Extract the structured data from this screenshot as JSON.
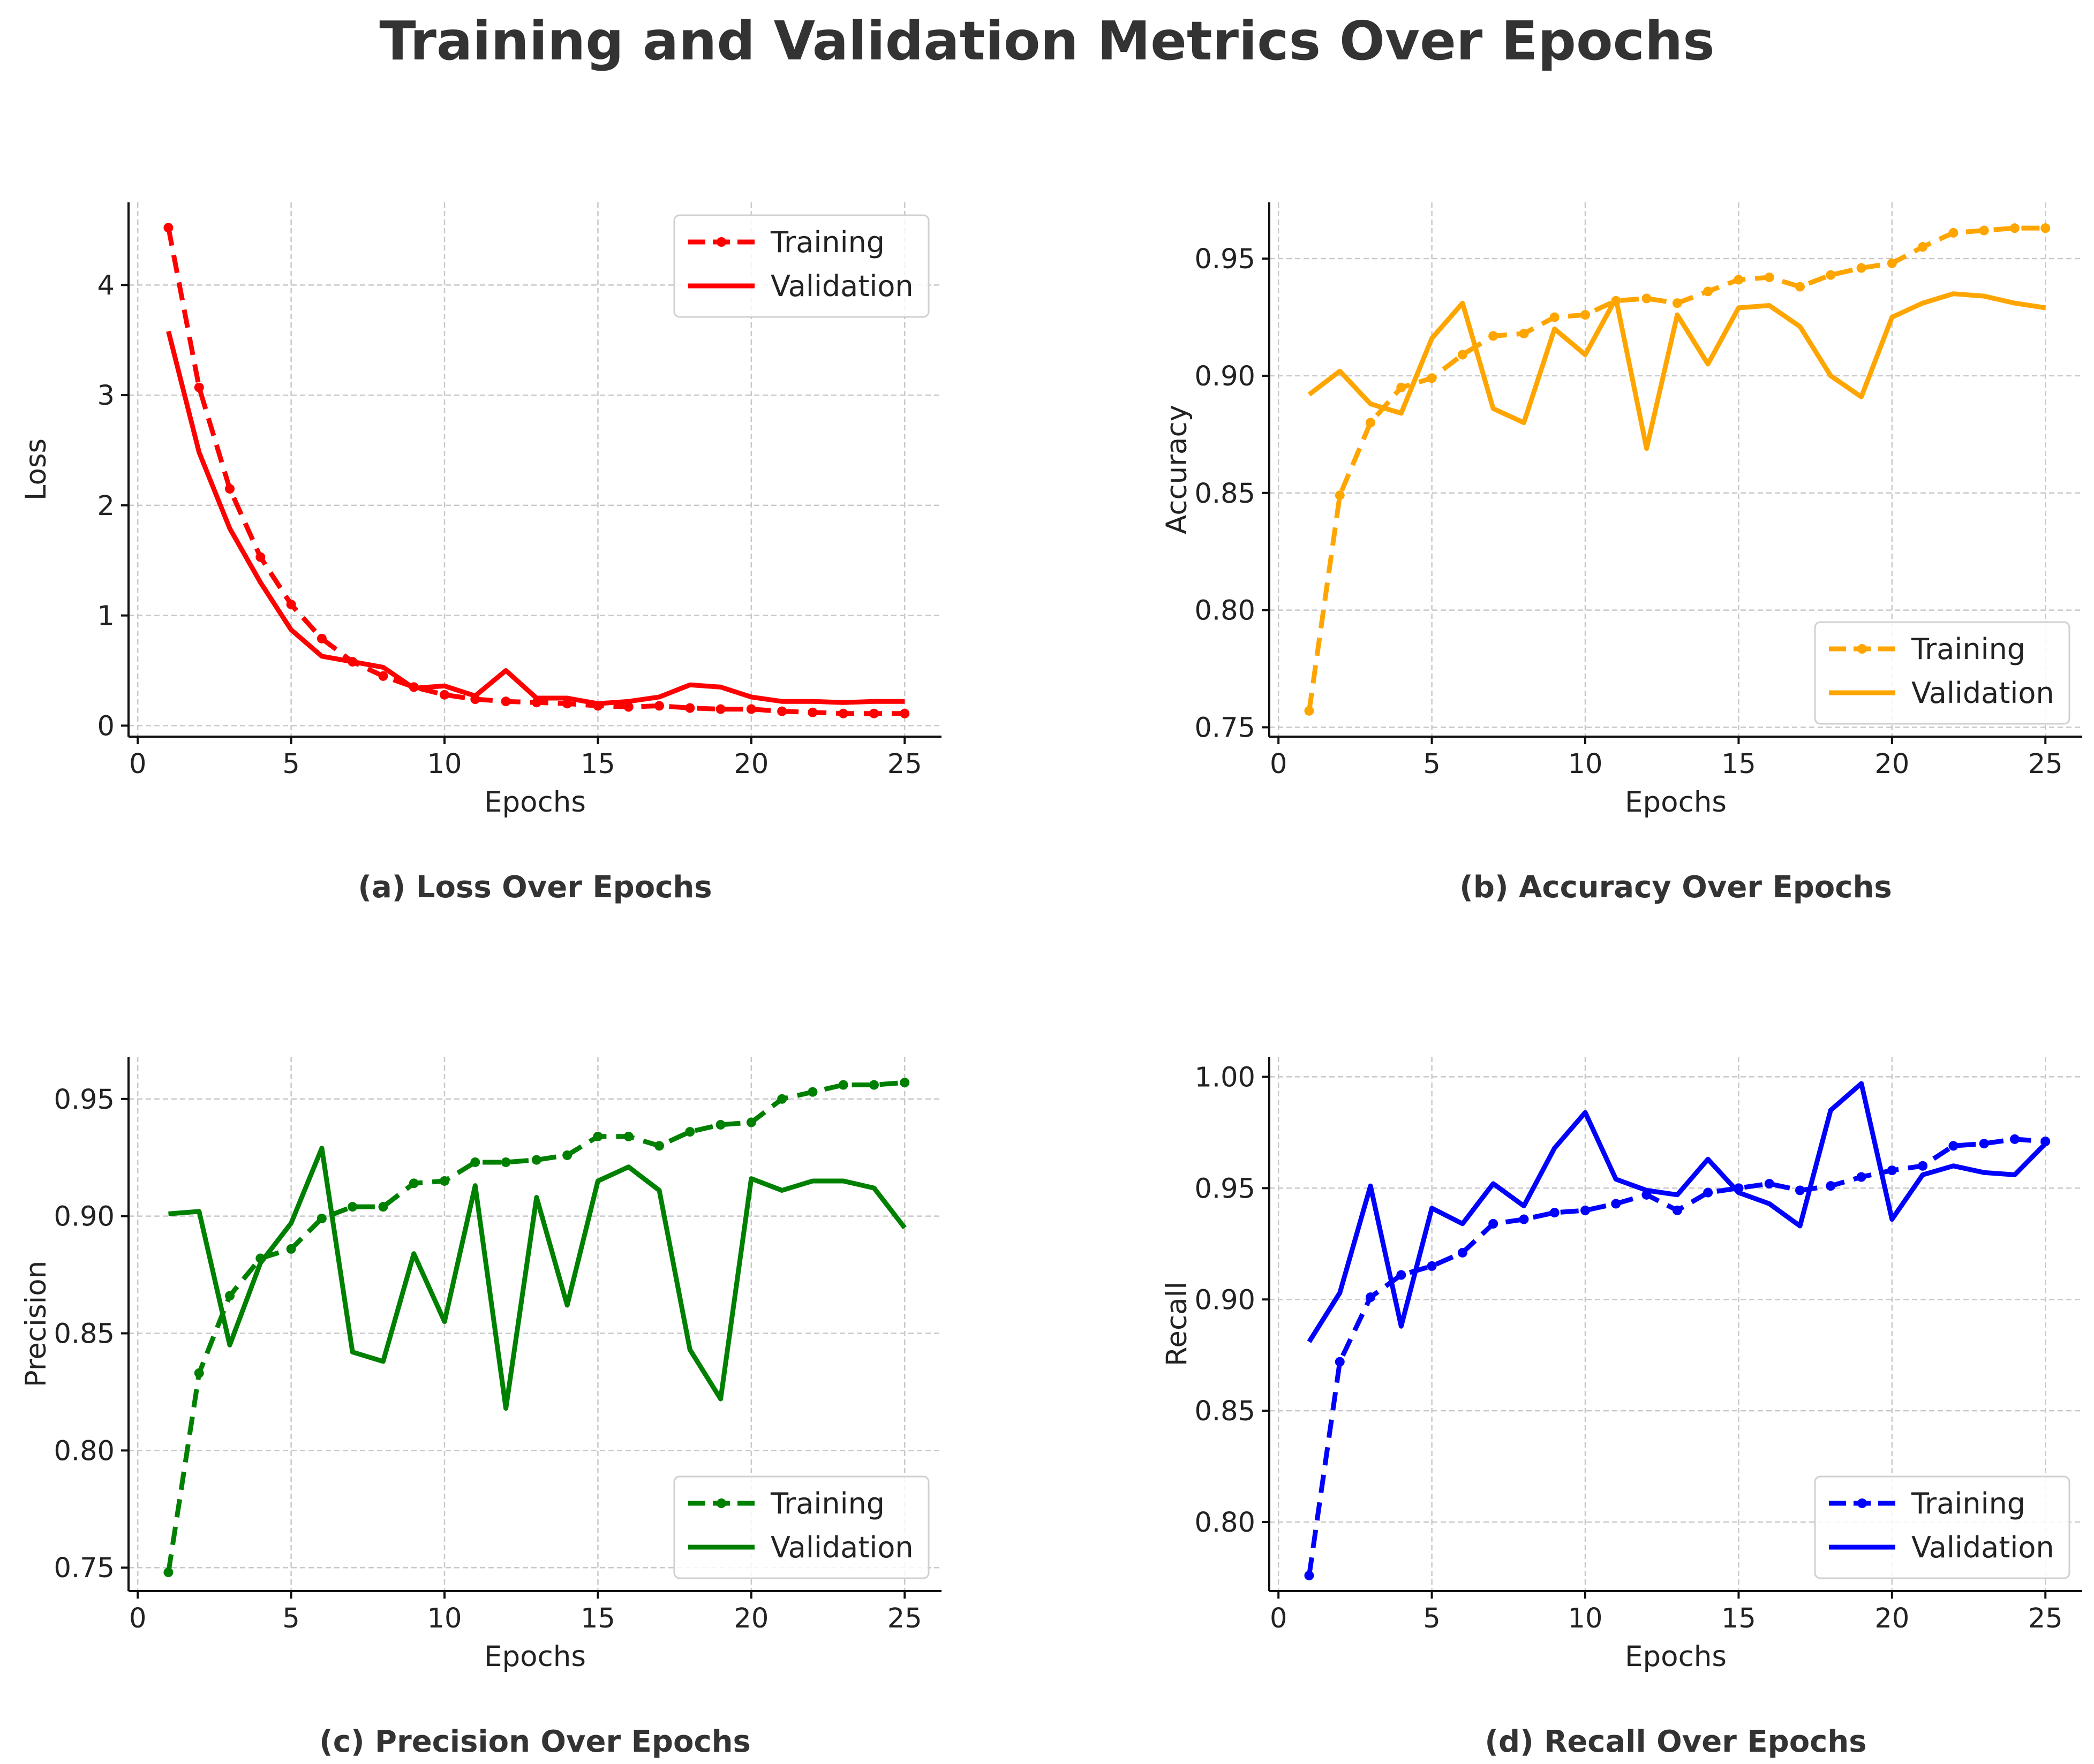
{
  "title": "Training and Validation Metrics Over Epochs",
  "chart_data": [
    {
      "type": "line",
      "id": "loss",
      "caption": "(a) Loss Over Epochs",
      "xlabel": "Epochs",
      "ylabel": "Loss",
      "color": "#ff0000",
      "xlim": [
        -0.3,
        26.2
      ],
      "ylim": [
        -0.1,
        4.75
      ],
      "xticks": [
        0,
        5,
        10,
        15,
        20,
        25
      ],
      "yticks": [
        0,
        1,
        2,
        3,
        4
      ],
      "ytick_decimals": 0,
      "legend_position": "top-right",
      "x": [
        1,
        2,
        3,
        4,
        5,
        6,
        7,
        8,
        9,
        10,
        11,
        12,
        13,
        14,
        15,
        16,
        17,
        18,
        19,
        20,
        21,
        22,
        23,
        24,
        25
      ],
      "series": [
        {
          "name": "Training",
          "style": "dashed-marker",
          "values": [
            4.52,
            3.07,
            2.15,
            1.53,
            1.1,
            0.79,
            0.58,
            0.45,
            0.35,
            0.28,
            0.24,
            0.22,
            0.21,
            0.2,
            0.18,
            0.17,
            0.18,
            0.16,
            0.15,
            0.15,
            0.13,
            0.12,
            0.11,
            0.11,
            0.11
          ]
        },
        {
          "name": "Validation",
          "style": "solid",
          "values": [
            3.58,
            2.48,
            1.79,
            1.3,
            0.87,
            0.63,
            0.58,
            0.53,
            0.34,
            0.36,
            0.27,
            0.5,
            0.25,
            0.25,
            0.2,
            0.22,
            0.26,
            0.37,
            0.35,
            0.26,
            0.22,
            0.22,
            0.21,
            0.22,
            0.22
          ]
        }
      ]
    },
    {
      "type": "line",
      "id": "accuracy",
      "caption": "(b) Accuracy Over Epochs",
      "xlabel": "Epochs",
      "ylabel": "Accuracy",
      "color": "#ffa500",
      "xlim": [
        -0.3,
        26.2
      ],
      "ylim": [
        0.746,
        0.974
      ],
      "xticks": [
        0,
        5,
        10,
        15,
        20,
        25
      ],
      "yticks": [
        0.75,
        0.8,
        0.85,
        0.9,
        0.95
      ],
      "ytick_decimals": 2,
      "legend_position": "lower-right",
      "x": [
        1,
        2,
        3,
        4,
        5,
        6,
        7,
        8,
        9,
        10,
        11,
        12,
        13,
        14,
        15,
        16,
        17,
        18,
        19,
        20,
        21,
        22,
        23,
        24,
        25
      ],
      "series": [
        {
          "name": "Training",
          "style": "dashed-marker",
          "values": [
            0.757,
            0.849,
            0.88,
            0.895,
            0.899,
            0.909,
            0.917,
            0.918,
            0.925,
            0.926,
            0.932,
            0.933,
            0.931,
            0.936,
            0.941,
            0.942,
            0.938,
            0.943,
            0.946,
            0.948,
            0.955,
            0.961,
            0.962,
            0.963,
            0.963
          ]
        },
        {
          "name": "Validation",
          "style": "solid",
          "values": [
            0.892,
            0.902,
            0.888,
            0.884,
            0.916,
            0.931,
            0.886,
            0.88,
            0.92,
            0.909,
            0.933,
            0.869,
            0.926,
            0.905,
            0.929,
            0.93,
            0.921,
            0.9,
            0.891,
            0.925,
            0.931,
            0.935,
            0.934,
            0.931,
            0.929
          ]
        }
      ]
    },
    {
      "type": "line",
      "id": "precision",
      "caption": "(c) Precision Over Epochs",
      "xlabel": "Epochs",
      "ylabel": "Precision",
      "color": "#008000",
      "xlim": [
        -0.3,
        26.2
      ],
      "ylim": [
        0.74,
        0.968
      ],
      "xticks": [
        0,
        5,
        10,
        15,
        20,
        25
      ],
      "yticks": [
        0.75,
        0.8,
        0.85,
        0.9,
        0.95
      ],
      "ytick_decimals": 2,
      "legend_position": "lower-right",
      "x": [
        1,
        2,
        3,
        4,
        5,
        6,
        7,
        8,
        9,
        10,
        11,
        12,
        13,
        14,
        15,
        16,
        17,
        18,
        19,
        20,
        21,
        22,
        23,
        24,
        25
      ],
      "series": [
        {
          "name": "Training",
          "style": "dashed-marker",
          "values": [
            0.748,
            0.833,
            0.866,
            0.882,
            0.886,
            0.899,
            0.904,
            0.904,
            0.914,
            0.915,
            0.923,
            0.923,
            0.924,
            0.926,
            0.934,
            0.934,
            0.93,
            0.936,
            0.939,
            0.94,
            0.95,
            0.953,
            0.956,
            0.956,
            0.957
          ]
        },
        {
          "name": "Validation",
          "style": "solid",
          "values": [
            0.901,
            0.902,
            0.845,
            0.88,
            0.897,
            0.929,
            0.842,
            0.838,
            0.884,
            0.855,
            0.913,
            0.818,
            0.908,
            0.862,
            0.915,
            0.921,
            0.911,
            0.843,
            0.822,
            0.916,
            0.911,
            0.915,
            0.915,
            0.912,
            0.895
          ]
        }
      ]
    },
    {
      "type": "line",
      "id": "recall",
      "caption": "(d) Recall Over Epochs",
      "xlabel": "Epochs",
      "ylabel": "Recall",
      "color": "#0000ff",
      "xlim": [
        -0.3,
        26.2
      ],
      "ylim": [
        0.769,
        1.009
      ],
      "xticks": [
        0,
        5,
        10,
        15,
        20,
        25
      ],
      "yticks": [
        0.8,
        0.85,
        0.9,
        0.95,
        1.0
      ],
      "ytick_decimals": 2,
      "legend_position": "lower-right",
      "x": [
        1,
        2,
        3,
        4,
        5,
        6,
        7,
        8,
        9,
        10,
        11,
        12,
        13,
        14,
        15,
        16,
        17,
        18,
        19,
        20,
        21,
        22,
        23,
        24,
        25
      ],
      "series": [
        {
          "name": "Training",
          "style": "dashed-marker",
          "values": [
            0.776,
            0.872,
            0.901,
            0.911,
            0.915,
            0.921,
            0.934,
            0.936,
            0.939,
            0.94,
            0.943,
            0.947,
            0.94,
            0.948,
            0.95,
            0.952,
            0.949,
            0.951,
            0.955,
            0.958,
            0.96,
            0.969,
            0.97,
            0.972,
            0.971
          ]
        },
        {
          "name": "Validation",
          "style": "solid",
          "values": [
            0.881,
            0.903,
            0.951,
            0.888,
            0.941,
            0.934,
            0.952,
            0.942,
            0.968,
            0.984,
            0.954,
            0.949,
            0.947,
            0.963,
            0.948,
            0.943,
            0.933,
            0.985,
            0.997,
            0.936,
            0.956,
            0.96,
            0.957,
            0.956,
            0.97
          ]
        }
      ]
    }
  ]
}
